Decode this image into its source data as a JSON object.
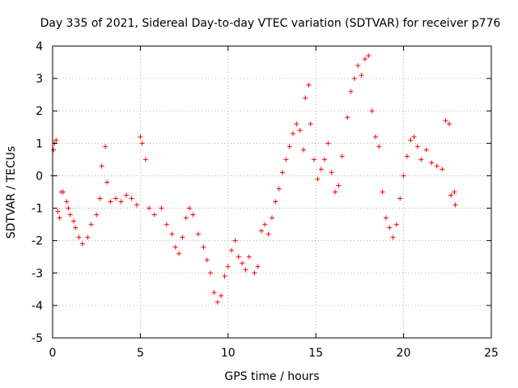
{
  "chart_data": {
    "type": "scatter",
    "title": "Day 335 of 2021, Sidereal Day-to-day VTEC variation (SDTVAR) for receiver p776",
    "xlabel": "GPS time / hours",
    "ylabel": "SDTVAR / TECUs",
    "xlim": [
      0,
      25
    ],
    "ylim": [
      -5,
      4
    ],
    "xticks": [
      0,
      5,
      10,
      15,
      20,
      25
    ],
    "yticks": [
      -5,
      -4,
      -3,
      -2,
      -1,
      0,
      1,
      2,
      3,
      4
    ],
    "grid": true,
    "marker": "+",
    "color": "#ff0000",
    "series": [
      {
        "name": "SDTVAR",
        "points": [
          [
            0.0,
            0.0
          ],
          [
            0.05,
            0.8
          ],
          [
            0.1,
            1.0
          ],
          [
            0.2,
            1.1
          ],
          [
            0.3,
            -1.1
          ],
          [
            0.4,
            -1.3
          ],
          [
            0.5,
            -0.5
          ],
          [
            0.6,
            -0.5
          ],
          [
            0.8,
            -0.8
          ],
          [
            0.9,
            -1.0
          ],
          [
            1.0,
            -1.2
          ],
          [
            1.2,
            -1.4
          ],
          [
            1.3,
            -1.6
          ],
          [
            1.5,
            -1.9
          ],
          [
            1.7,
            -2.1
          ],
          [
            2.0,
            -1.9
          ],
          [
            2.2,
            -1.5
          ],
          [
            2.5,
            -1.2
          ],
          [
            2.7,
            -0.7
          ],
          [
            2.8,
            0.3
          ],
          [
            3.0,
            0.9
          ],
          [
            3.1,
            -0.2
          ],
          [
            3.3,
            -0.8
          ],
          [
            3.6,
            -0.7
          ],
          [
            3.9,
            -0.8
          ],
          [
            4.2,
            -0.6
          ],
          [
            4.5,
            -0.7
          ],
          [
            4.8,
            -0.9
          ],
          [
            5.0,
            1.2
          ],
          [
            5.1,
            1.0
          ],
          [
            5.3,
            0.5
          ],
          [
            5.5,
            -1.0
          ],
          [
            5.8,
            -1.2
          ],
          [
            6.2,
            -1.0
          ],
          [
            6.5,
            -1.5
          ],
          [
            6.8,
            -1.8
          ],
          [
            7.0,
            -2.2
          ],
          [
            7.2,
            -2.4
          ],
          [
            7.4,
            -1.9
          ],
          [
            7.6,
            -1.3
          ],
          [
            7.8,
            -1.0
          ],
          [
            8.0,
            -1.2
          ],
          [
            8.3,
            -1.8
          ],
          [
            8.6,
            -2.2
          ],
          [
            8.8,
            -2.6
          ],
          [
            9.0,
            -3.0
          ],
          [
            9.2,
            -3.6
          ],
          [
            9.4,
            -3.9
          ],
          [
            9.6,
            -3.7
          ],
          [
            9.8,
            -3.1
          ],
          [
            10.0,
            -2.8
          ],
          [
            10.2,
            -2.3
          ],
          [
            10.4,
            -2.0
          ],
          [
            10.6,
            -2.5
          ],
          [
            10.8,
            -2.7
          ],
          [
            11.0,
            -2.9
          ],
          [
            11.2,
            -2.5
          ],
          [
            11.5,
            -3.0
          ],
          [
            11.7,
            -2.8
          ],
          [
            11.9,
            -1.7
          ],
          [
            12.1,
            -1.5
          ],
          [
            12.3,
            -1.8
          ],
          [
            12.5,
            -1.3
          ],
          [
            12.7,
            -0.8
          ],
          [
            12.9,
            -0.4
          ],
          [
            13.1,
            0.1
          ],
          [
            13.3,
            0.5
          ],
          [
            13.5,
            0.9
          ],
          [
            13.7,
            1.3
          ],
          [
            13.9,
            1.6
          ],
          [
            14.1,
            1.4
          ],
          [
            14.3,
            0.8
          ],
          [
            14.4,
            2.4
          ],
          [
            14.6,
            2.8
          ],
          [
            14.7,
            1.6
          ],
          [
            14.9,
            0.5
          ],
          [
            15.1,
            -0.1
          ],
          [
            15.3,
            0.2
          ],
          [
            15.5,
            0.5
          ],
          [
            15.7,
            1.0
          ],
          [
            15.9,
            0.1
          ],
          [
            16.1,
            -0.5
          ],
          [
            16.3,
            -0.3
          ],
          [
            16.5,
            0.6
          ],
          [
            16.8,
            1.8
          ],
          [
            17.0,
            2.6
          ],
          [
            17.2,
            3.0
          ],
          [
            17.4,
            3.4
          ],
          [
            17.6,
            3.1
          ],
          [
            17.8,
            3.6
          ],
          [
            18.0,
            3.7
          ],
          [
            18.2,
            2.0
          ],
          [
            18.4,
            1.2
          ],
          [
            18.6,
            0.9
          ],
          [
            18.8,
            -0.5
          ],
          [
            19.0,
            -1.3
          ],
          [
            19.2,
            -1.6
          ],
          [
            19.4,
            -1.9
          ],
          [
            19.6,
            -1.5
          ],
          [
            19.8,
            -0.7
          ],
          [
            20.0,
            0.0
          ],
          [
            20.2,
            0.6
          ],
          [
            20.4,
            1.1
          ],
          [
            20.6,
            1.2
          ],
          [
            20.8,
            0.9
          ],
          [
            21.0,
            0.5
          ],
          [
            21.3,
            0.8
          ],
          [
            21.6,
            0.4
          ],
          [
            21.9,
            0.3
          ],
          [
            22.2,
            0.2
          ],
          [
            22.4,
            1.7
          ],
          [
            22.6,
            1.6
          ],
          [
            22.7,
            -0.6
          ],
          [
            22.9,
            -0.5
          ],
          [
            22.95,
            -0.9
          ]
        ]
      }
    ]
  }
}
